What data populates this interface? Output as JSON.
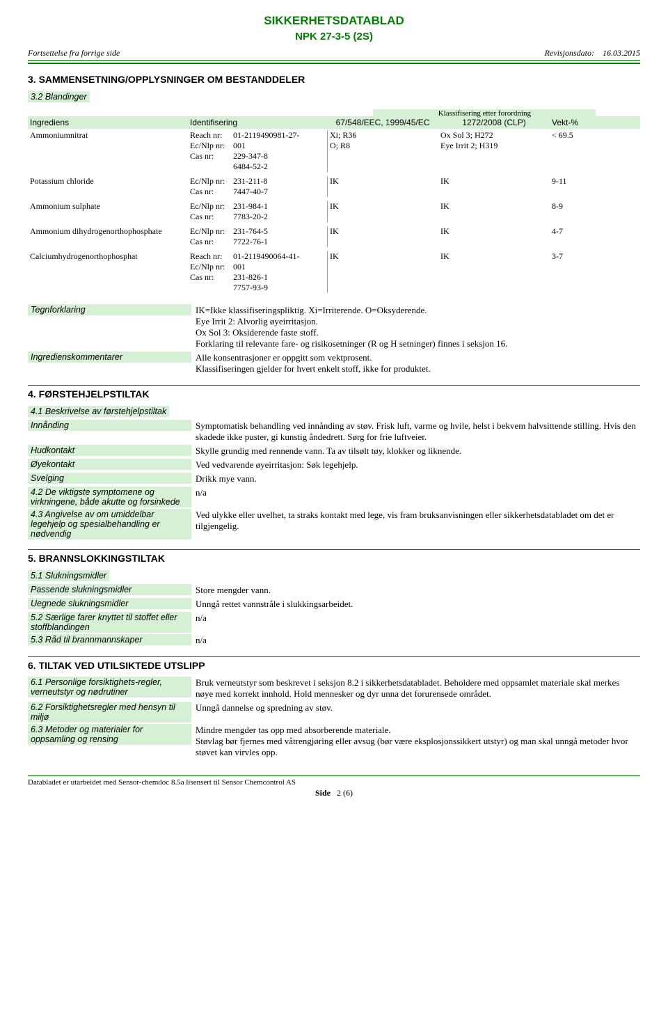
{
  "doc_title": "SIKKERHETSDATABLAD",
  "doc_subtitle": "NPK 27-3-5 (2S)",
  "continuation": "Fortsettelse fra forrige side",
  "revision_label": "Revisjonsdato:",
  "revision_date": "16.03.2015",
  "section3": {
    "title": "3. SAMMENSETNING/OPPLYSNINGER OM BESTANDDELER",
    "mixtures": "3.2 Blandinger",
    "classif_group": "Klassifisering etter forordning",
    "hdr_ingrediens": "Ingrediens",
    "hdr_identif": "Identifisering",
    "hdr_dsd": "67/548/EEC, 1999/45/EC",
    "hdr_clp": "1272/2008 (CLP)",
    "hdr_wt": "Vekt-%",
    "id_keys": {
      "reach": "Reach nr:",
      "ec": "Ec/Nlp nr:",
      "cas": "Cas nr:"
    },
    "ingredients": [
      {
        "name": "Ammoniumnitrat",
        "ids": [
          [
            "Reach nr:",
            "01-2119490981-27-"
          ],
          [
            "Ec/Nlp nr:",
            "001"
          ],
          [
            "Cas nr:",
            "229-347-8"
          ],
          [
            "",
            "6484-52-2"
          ]
        ],
        "dsd": "Xi; R36\nO; R8",
        "clp": "Ox Sol 3; H272\nEye Irrit 2; H319",
        "wt": "< 69.5"
      },
      {
        "name": "Potassium chloride",
        "ids": [
          [
            "Ec/Nlp nr:",
            "231-211-8"
          ],
          [
            "Cas nr:",
            "7447-40-7"
          ]
        ],
        "dsd": "IK",
        "clp": "IK",
        "wt": "9-11"
      },
      {
        "name": "Ammonium sulphate",
        "ids": [
          [
            "Ec/Nlp nr:",
            "231-984-1"
          ],
          [
            "Cas nr:",
            "7783-20-2"
          ]
        ],
        "dsd": "IK",
        "clp": "IK",
        "wt": "8-9"
      },
      {
        "name": "Ammonium dihydrogenorthophosphate",
        "ids": [
          [
            "Ec/Nlp nr:",
            "231-764-5"
          ],
          [
            "Cas nr:",
            "7722-76-1"
          ]
        ],
        "dsd": "IK",
        "clp": "IK",
        "wt": "4-7"
      },
      {
        "name": "Calciumhydrogenorthophosphat",
        "ids": [
          [
            "Reach nr:",
            "01-2119490064-41-"
          ],
          [
            "Ec/Nlp nr:",
            "001"
          ],
          [
            "Cas nr:",
            "231-826-1"
          ],
          [
            "",
            "7757-93-9"
          ]
        ],
        "dsd": "IK",
        "clp": "IK",
        "wt": "3-7"
      }
    ],
    "legend_label": "Tegnforklaring",
    "legend_value": "IK=Ikke klassifiseringspliktig. Xi=Irriterende. O=Oksyderende.\nEye Irrit 2: Alvorlig øyeirritasjon.\nOx Sol 3: Oksiderende faste stoff.\nForklaring til relevante fare- og risikosetninger (R og H setninger) finnes i seksjon 16.",
    "comments_label": "Ingredienskommentarer",
    "comments_value": "Alle konsentrasjoner er oppgitt som vektprosent.\nKlassifiseringen gjelder for hvert enkelt stoff, ikke for produktet."
  },
  "section4": {
    "title": "4. FØRSTEHJELPSTILTAK",
    "s41": "4.1 Beskrivelse av førstehjelpstiltak",
    "inhalation_label": "Innånding",
    "inhalation_value": "Symptomatisk behandling ved innånding av støv. Frisk luft, varme og hvile, helst i bekvem halvsittende stilling. Hvis den skadede ikke puster, gi kunstig åndedrett. Sørg for frie luftveier.",
    "skin_label": "Hudkontakt",
    "skin_value": "Skylle grundig med rennende vann. Ta av tilsølt tøy, klokker og liknende.",
    "eye_label": "Øyekontakt",
    "eye_value": "Ved vedvarende øyeirritasjon: Søk legehjelp.",
    "swallow_label": "Svelging",
    "swallow_value": "Drikk mye vann.",
    "s42_label": "4.2 De viktigste symptomene og virkningene, både akutte og forsinkede",
    "s42_value": "n/a",
    "s43_label": "4.3 Angivelse av om umiddelbar legehjelp og spesialbehandling er nødvendig",
    "s43_value": "Ved ulykke eller uvelhet, ta straks kontakt med lege, vis fram bruksanvisningen eller sikkerhetsdatabladet om det er tilgjengelig."
  },
  "section5": {
    "title": "5. BRANNSLOKKINGSTILTAK",
    "s51": "5.1 Slukningsmidler",
    "suitable_label": "Passende slukningsmidler",
    "suitable_value": "Store mengder vann.",
    "unsuitable_label": "Uegnede slukningsmidler",
    "unsuitable_value": "Unngå rettet vannstråle i slukkingsarbeidet.",
    "s52_label": "5.2 Særlige farer knyttet til stoffet eller stoffblandingen",
    "s52_value": "n/a",
    "s53_label": "5.3 Råd til brannmannskaper",
    "s53_value": "n/a"
  },
  "section6": {
    "title": "6. TILTAK VED UTILSIKTEDE UTSLIPP",
    "s61_label": "6.1 Personlige forsiktighets-regler, verneutstyr og nødrutiner",
    "s61_value": "Bruk verneutstyr som beskrevet i seksjon 8.2 i sikkerhetsdatabladet. Beholdere med oppsamlet materiale skal  merkes nøye med korrekt innhold. Hold mennesker og dyr unna det forurensede området.",
    "s62_label": "6.2 Forsiktighetsregler med hensyn til miljø",
    "s62_value": "Unngå dannelse og spredning av støv.",
    "s63_label": "6.3 Metoder og materialer for oppsamling og rensing",
    "s63_value": "Mindre mengder tas opp med absorberende materiale.\nStøvlag bør fjernes med våtrengjøring eller avsug (bør være eksplosjonssikkert utstyr) og man skal unngå metoder hvor støvet kan virvles opp."
  },
  "footer": {
    "left": "Databladet er utarbeidet med Sensor-chemdoc 8.5a lisensert til Sensor Chemcontrol AS",
    "side_label": "Side",
    "page": "2 (6)"
  }
}
